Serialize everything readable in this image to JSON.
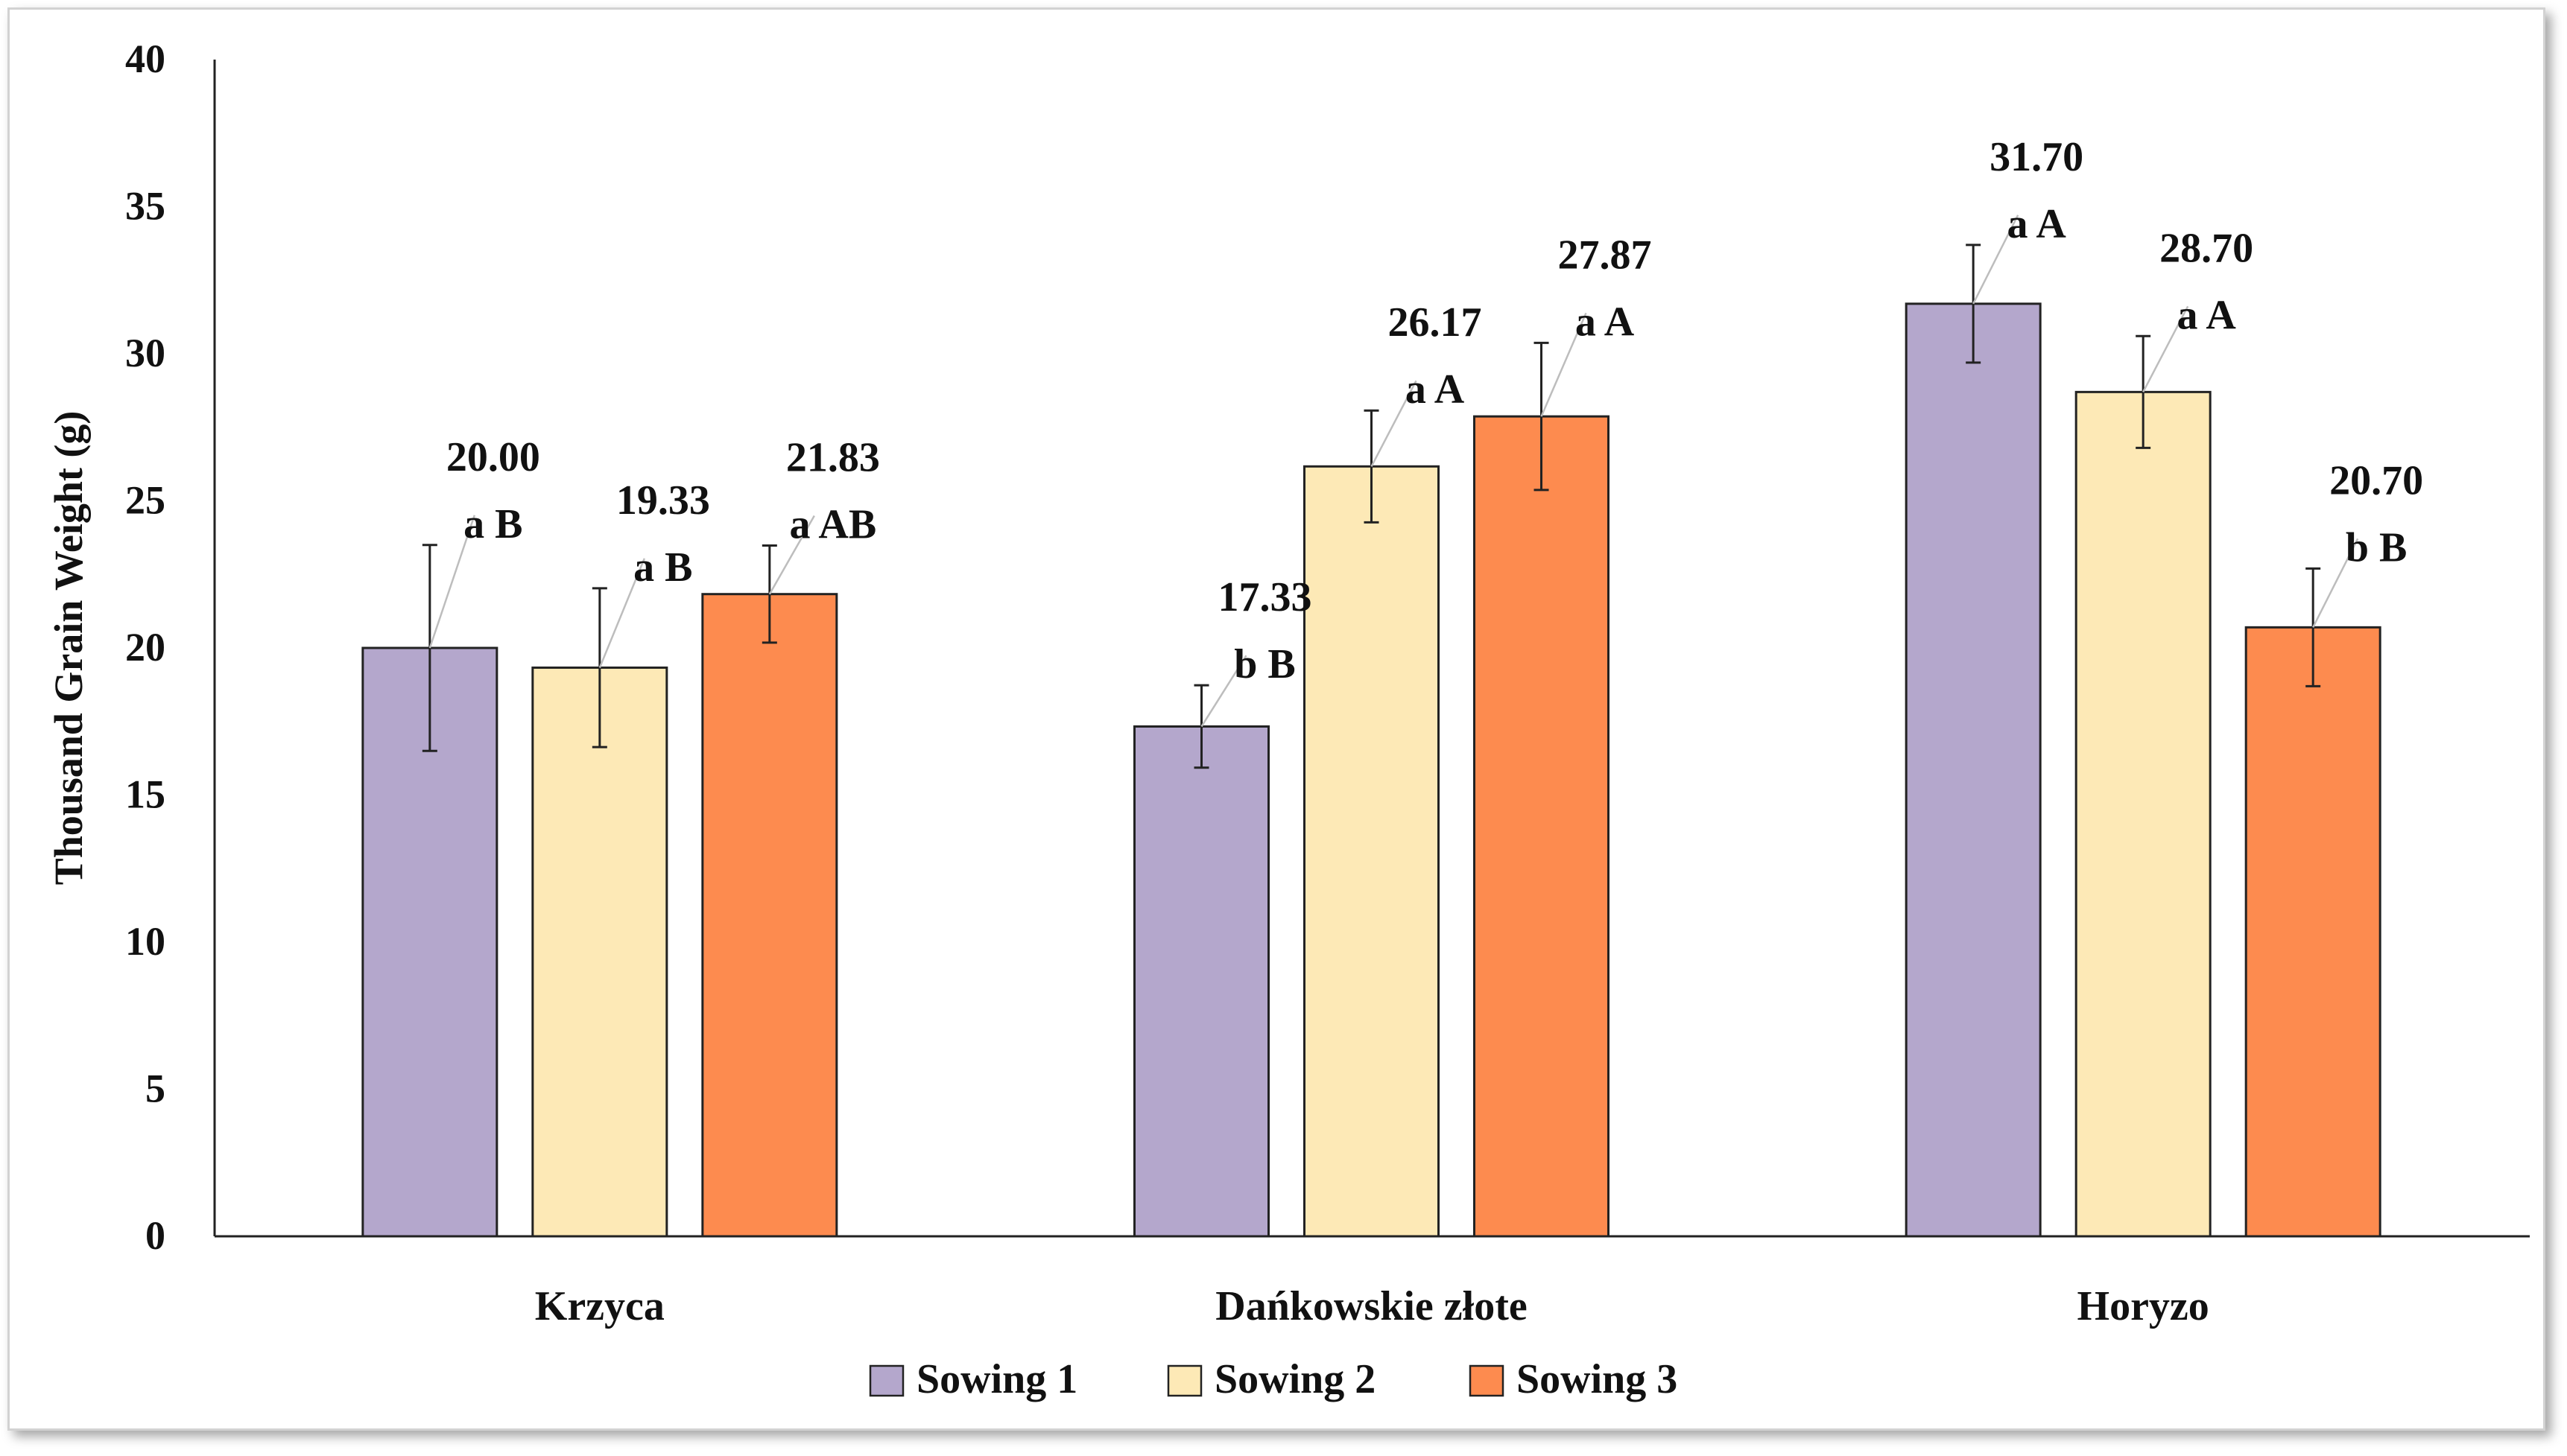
{
  "chart_data": {
    "type": "bar",
    "title": "",
    "xlabel": "",
    "ylabel": "Thousand Grain Weight (g)",
    "ylim": [
      0,
      40
    ],
    "yticks": [
      0,
      5,
      10,
      15,
      20,
      25,
      30,
      35,
      40
    ],
    "grid": false,
    "legend_position": "bottom",
    "categories": [
      "Krzyca",
      "Dańkowskie złote",
      "Horyzo"
    ],
    "series": [
      {
        "name": "Sowing 1",
        "color": "#b4a7cc",
        "values": [
          20.0,
          17.33,
          31.7
        ],
        "errors": [
          3.5,
          1.4,
          2.0
        ],
        "value_labels": [
          "20.00",
          "17.33",
          "31.70"
        ],
        "letters": [
          "a B",
          "b B",
          "a A"
        ]
      },
      {
        "name": "Sowing 2",
        "color": "#fde9b6",
        "values": [
          19.33,
          26.17,
          28.7
        ],
        "errors": [
          2.7,
          1.9,
          1.9
        ],
        "value_labels": [
          "19.33",
          "26.17",
          "28.70"
        ],
        "letters": [
          "a B",
          "a A",
          "a A"
        ]
      },
      {
        "name": "Sowing 3",
        "color": "#fd8b4f",
        "values": [
          21.83,
          27.87,
          20.7
        ],
        "errors": [
          1.65,
          2.5,
          2.0
        ],
        "value_labels": [
          "21.83",
          "27.87",
          "20.70"
        ],
        "letters": [
          "a AB",
          "a A",
          "b B"
        ]
      }
    ]
  }
}
